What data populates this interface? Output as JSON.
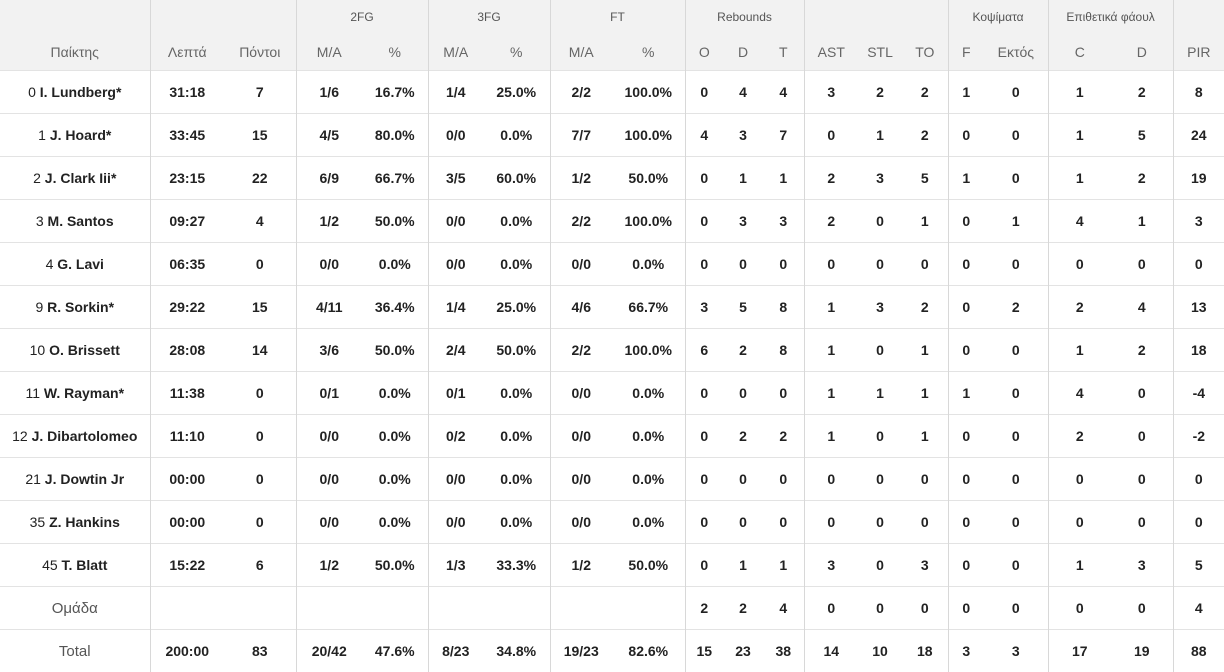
{
  "header": {
    "groups": {
      "fg2": "2FG",
      "fg3": "3FG",
      "ft": "FT",
      "rebounds": "Rebounds",
      "fouls_committed": "Κοψίματα",
      "fouls_drawn": "Επιθετικά φάουλ"
    },
    "columns": {
      "player": "Παίκτης",
      "minutes": "Λεπτά",
      "points": "Πόντοι",
      "fg2_ma": "M/A",
      "fg2_pct": "%",
      "fg3_ma": "M/A",
      "fg3_pct": "%",
      "ft_ma": "M/A",
      "ft_pct": "%",
      "reb_o": "O",
      "reb_d": "D",
      "reb_t": "T",
      "ast": "AST",
      "stl": "STL",
      "to": "TO",
      "blk_f": "F",
      "blk_against": "Εκτός",
      "pf_c": "C",
      "pf_d": "D",
      "pir": "PIR"
    }
  },
  "players": [
    {
      "num": "0",
      "name": "I. Lundberg*",
      "min": "31:18",
      "pts": "7",
      "fg2": "1/6",
      "fg2p": "16.7%",
      "fg3": "1/4",
      "fg3p": "25.0%",
      "ft": "2/2",
      "ftp": "100.0%",
      "oreb": "0",
      "dreb": "4",
      "treb": "4",
      "ast": "3",
      "stl": "2",
      "to": "2",
      "f": "1",
      "ag": "0",
      "c": "1",
      "d": "2",
      "pir": "8"
    },
    {
      "num": "1",
      "name": "J. Hoard*",
      "min": "33:45",
      "pts": "15",
      "fg2": "4/5",
      "fg2p": "80.0%",
      "fg3": "0/0",
      "fg3p": "0.0%",
      "ft": "7/7",
      "ftp": "100.0%",
      "oreb": "4",
      "dreb": "3",
      "treb": "7",
      "ast": "0",
      "stl": "1",
      "to": "2",
      "f": "0",
      "ag": "0",
      "c": "1",
      "d": "5",
      "pir": "24"
    },
    {
      "num": "2",
      "name": "J. Clark Iii*",
      "min": "23:15",
      "pts": "22",
      "fg2": "6/9",
      "fg2p": "66.7%",
      "fg3": "3/5",
      "fg3p": "60.0%",
      "ft": "1/2",
      "ftp": "50.0%",
      "oreb": "0",
      "dreb": "1",
      "treb": "1",
      "ast": "2",
      "stl": "3",
      "to": "5",
      "f": "1",
      "ag": "0",
      "c": "1",
      "d": "2",
      "pir": "19"
    },
    {
      "num": "3",
      "name": "M. Santos",
      "min": "09:27",
      "pts": "4",
      "fg2": "1/2",
      "fg2p": "50.0%",
      "fg3": "0/0",
      "fg3p": "0.0%",
      "ft": "2/2",
      "ftp": "100.0%",
      "oreb": "0",
      "dreb": "3",
      "treb": "3",
      "ast": "2",
      "stl": "0",
      "to": "1",
      "f": "0",
      "ag": "1",
      "c": "4",
      "d": "1",
      "pir": "3"
    },
    {
      "num": "4",
      "name": "G. Lavi",
      "min": "06:35",
      "pts": "0",
      "fg2": "0/0",
      "fg2p": "0.0%",
      "fg3": "0/0",
      "fg3p": "0.0%",
      "ft": "0/0",
      "ftp": "0.0%",
      "oreb": "0",
      "dreb": "0",
      "treb": "0",
      "ast": "0",
      "stl": "0",
      "to": "0",
      "f": "0",
      "ag": "0",
      "c": "0",
      "d": "0",
      "pir": "0"
    },
    {
      "num": "9",
      "name": "R. Sorkin*",
      "min": "29:22",
      "pts": "15",
      "fg2": "4/11",
      "fg2p": "36.4%",
      "fg3": "1/4",
      "fg3p": "25.0%",
      "ft": "4/6",
      "ftp": "66.7%",
      "oreb": "3",
      "dreb": "5",
      "treb": "8",
      "ast": "1",
      "stl": "3",
      "to": "2",
      "f": "0",
      "ag": "2",
      "c": "2",
      "d": "4",
      "pir": "13"
    },
    {
      "num": "10",
      "name": "O. Brissett",
      "min": "28:08",
      "pts": "14",
      "fg2": "3/6",
      "fg2p": "50.0%",
      "fg3": "2/4",
      "fg3p": "50.0%",
      "ft": "2/2",
      "ftp": "100.0%",
      "oreb": "6",
      "dreb": "2",
      "treb": "8",
      "ast": "1",
      "stl": "0",
      "to": "1",
      "f": "0",
      "ag": "0",
      "c": "1",
      "d": "2",
      "pir": "18"
    },
    {
      "num": "11",
      "name": "W. Rayman*",
      "min": "11:38",
      "pts": "0",
      "fg2": "0/1",
      "fg2p": "0.0%",
      "fg3": "0/1",
      "fg3p": "0.0%",
      "ft": "0/0",
      "ftp": "0.0%",
      "oreb": "0",
      "dreb": "0",
      "treb": "0",
      "ast": "1",
      "stl": "1",
      "to": "1",
      "f": "1",
      "ag": "0",
      "c": "4",
      "d": "0",
      "pir": "-4"
    },
    {
      "num": "12",
      "name": "J. Dibartolomeo",
      "min": "11:10",
      "pts": "0",
      "fg2": "0/0",
      "fg2p": "0.0%",
      "fg3": "0/2",
      "fg3p": "0.0%",
      "ft": "0/0",
      "ftp": "0.0%",
      "oreb": "0",
      "dreb": "2",
      "treb": "2",
      "ast": "1",
      "stl": "0",
      "to": "1",
      "f": "0",
      "ag": "0",
      "c": "2",
      "d": "0",
      "pir": "-2"
    },
    {
      "num": "21",
      "name": "J. Dowtin Jr",
      "min": "00:00",
      "pts": "0",
      "fg2": "0/0",
      "fg2p": "0.0%",
      "fg3": "0/0",
      "fg3p": "0.0%",
      "ft": "0/0",
      "ftp": "0.0%",
      "oreb": "0",
      "dreb": "0",
      "treb": "0",
      "ast": "0",
      "stl": "0",
      "to": "0",
      "f": "0",
      "ag": "0",
      "c": "0",
      "d": "0",
      "pir": "0"
    },
    {
      "num": "35",
      "name": "Z. Hankins",
      "min": "00:00",
      "pts": "0",
      "fg2": "0/0",
      "fg2p": "0.0%",
      "fg3": "0/0",
      "fg3p": "0.0%",
      "ft": "0/0",
      "ftp": "0.0%",
      "oreb": "0",
      "dreb": "0",
      "treb": "0",
      "ast": "0",
      "stl": "0",
      "to": "0",
      "f": "0",
      "ag": "0",
      "c": "0",
      "d": "0",
      "pir": "0"
    },
    {
      "num": "45",
      "name": "T. Blatt",
      "min": "15:22",
      "pts": "6",
      "fg2": "1/2",
      "fg2p": "50.0%",
      "fg3": "1/3",
      "fg3p": "33.3%",
      "ft": "1/2",
      "ftp": "50.0%",
      "oreb": "0",
      "dreb": "1",
      "treb": "1",
      "ast": "3",
      "stl": "0",
      "to": "3",
      "f": "0",
      "ag": "0",
      "c": "1",
      "d": "3",
      "pir": "5"
    }
  ],
  "team": {
    "label": "Ομάδα",
    "oreb": "2",
    "dreb": "2",
    "treb": "4",
    "ast": "0",
    "stl": "0",
    "to": "0",
    "f": "0",
    "ag": "0",
    "c": "0",
    "d": "0",
    "pir": "4"
  },
  "total": {
    "label": "Total",
    "min": "200:00",
    "pts": "83",
    "fg2": "20/42",
    "fg2p": "47.6%",
    "fg3": "8/23",
    "fg3p": "34.8%",
    "ft": "19/23",
    "ftp": "82.6%",
    "oreb": "15",
    "dreb": "23",
    "treb": "38",
    "ast": "14",
    "stl": "10",
    "to": "18",
    "f": "3",
    "ag": "3",
    "c": "17",
    "d": "19",
    "pir": "88"
  }
}
